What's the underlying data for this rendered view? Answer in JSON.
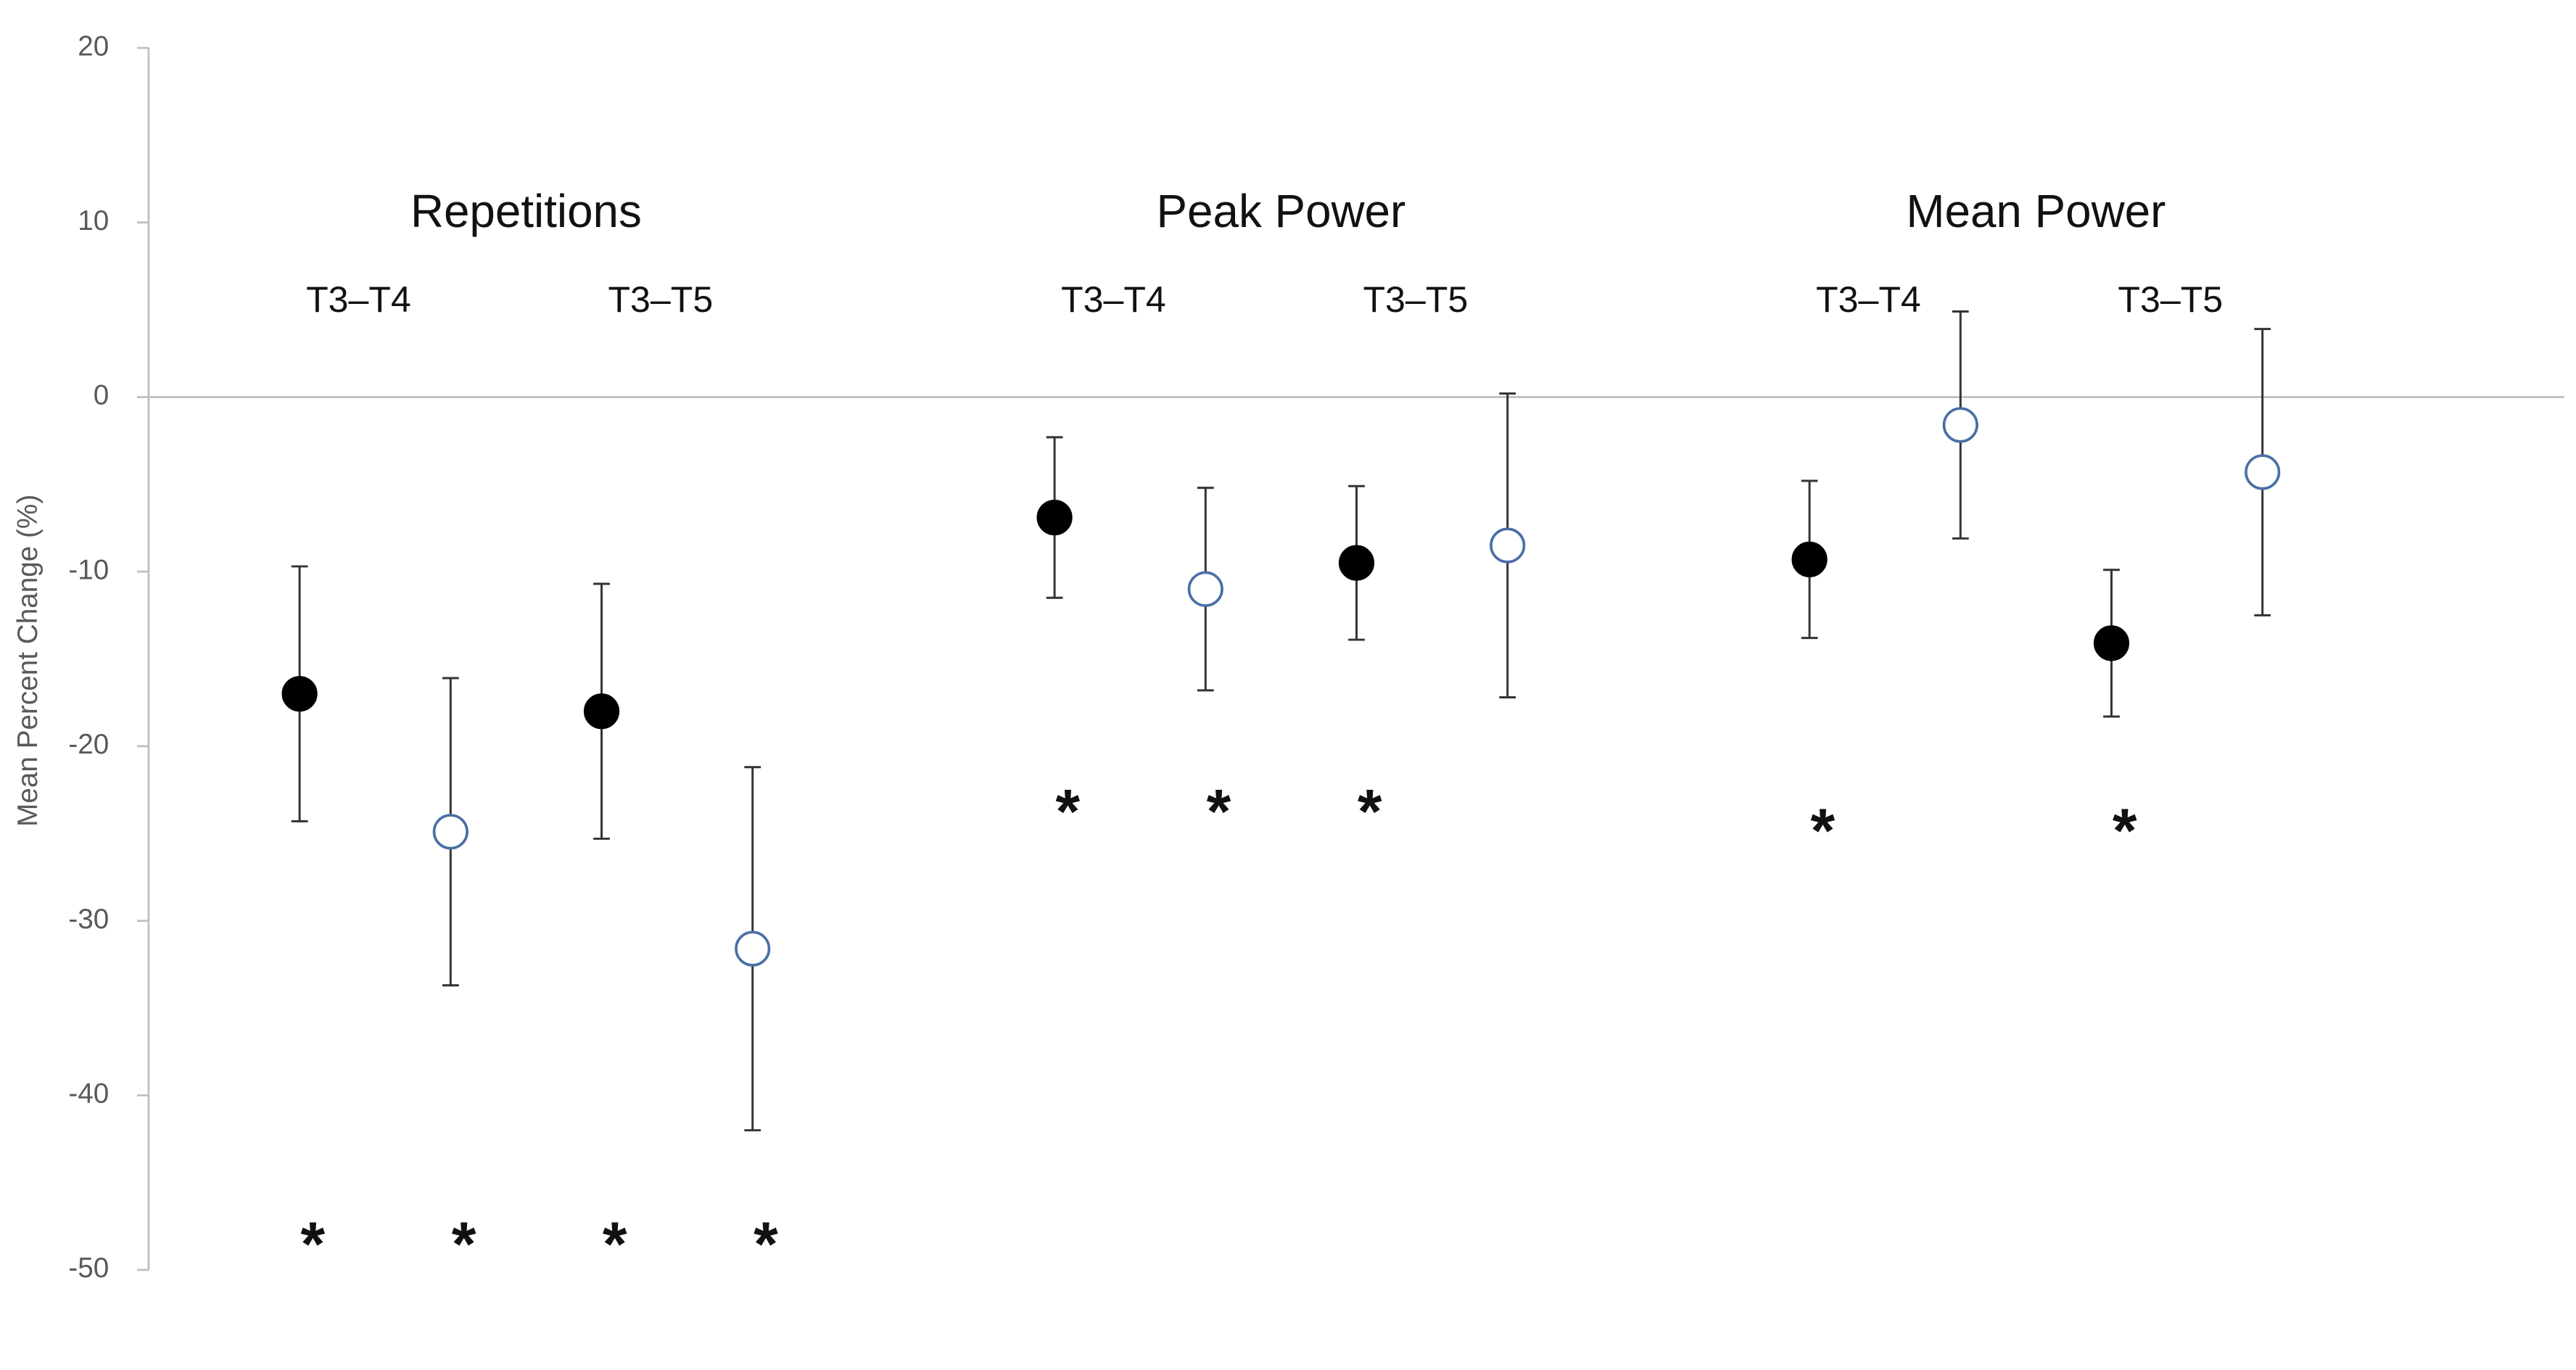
{
  "chart_data": {
    "type": "errorbar",
    "ylabel": "Mean Percent Change (%)",
    "ylim": [
      -50,
      20
    ],
    "yticks": [
      -50,
      -40,
      -30,
      -20,
      -10,
      0,
      10,
      20
    ],
    "xlim": [
      0,
      16
    ],
    "x": [
      1,
      2,
      3,
      4,
      6,
      7,
      8,
      9,
      11,
      12,
      13,
      14
    ],
    "values": [
      -17.0,
      -24.9,
      -18.0,
      -31.6,
      -6.9,
      -11.0,
      -9.5,
      -8.5,
      -9.3,
      -1.6,
      -14.1,
      -4.3
    ],
    "errors": [
      7.3,
      8.8,
      7.3,
      10.4,
      4.6,
      5.8,
      4.4,
      8.7,
      4.5,
      6.5,
      4.2,
      8.2
    ],
    "filled": [
      true,
      false,
      true,
      false,
      true,
      false,
      true,
      false,
      true,
      false,
      true,
      false
    ],
    "markers": [
      "*",
      "*",
      "*",
      "*",
      "*",
      "*",
      "*",
      null,
      "*",
      null,
      "*",
      null
    ],
    "groups": [
      {
        "title": "Repetitions",
        "labels": [
          "T3–T4",
          "T3–T5"
        ]
      },
      {
        "title": "Peak Power",
        "labels": [
          "T3–T4",
          "T3–T5"
        ]
      },
      {
        "title": "Mean Power",
        "labels": [
          "T3–T4",
          "T3–T5"
        ]
      }
    ]
  }
}
